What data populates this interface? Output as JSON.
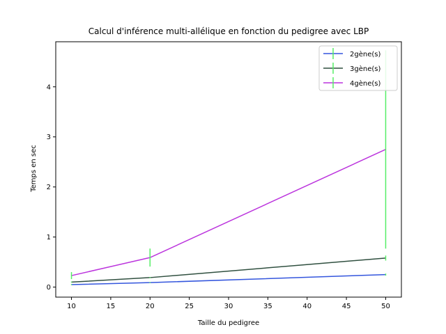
{
  "chart_data": {
    "type": "line",
    "title": "Calcul d'inférence multi-allélique en fonction du pedigree avec LBP",
    "xlabel": "Taille du pedigree",
    "ylabel": "Temps en sec",
    "x": [
      10,
      20,
      50
    ],
    "xlim": [
      8,
      52
    ],
    "ylim": [
      -0.2,
      4.9
    ],
    "xticks": [
      10,
      15,
      20,
      25,
      30,
      35,
      40,
      45,
      50
    ],
    "yticks": [
      0,
      1,
      2,
      3,
      4
    ],
    "grid": false,
    "legend_placement": "top-right",
    "error_bar_color": "#55ee66",
    "series": [
      {
        "name": "2gène(s)",
        "color": "#3355dd",
        "values": [
          0.05,
          0.09,
          0.25
        ],
        "errors": [
          0.01,
          0.01,
          0.02
        ]
      },
      {
        "name": "3gène(s)",
        "color": "#2f4f3f",
        "values": [
          0.1,
          0.19,
          0.58
        ],
        "errors": [
          0.01,
          0.01,
          0.05
        ]
      },
      {
        "name": "4gène(s)",
        "color": "#bb33dd",
        "values": [
          0.23,
          0.59,
          2.75
        ],
        "errors": [
          0.07,
          0.18,
          1.98
        ]
      }
    ]
  }
}
